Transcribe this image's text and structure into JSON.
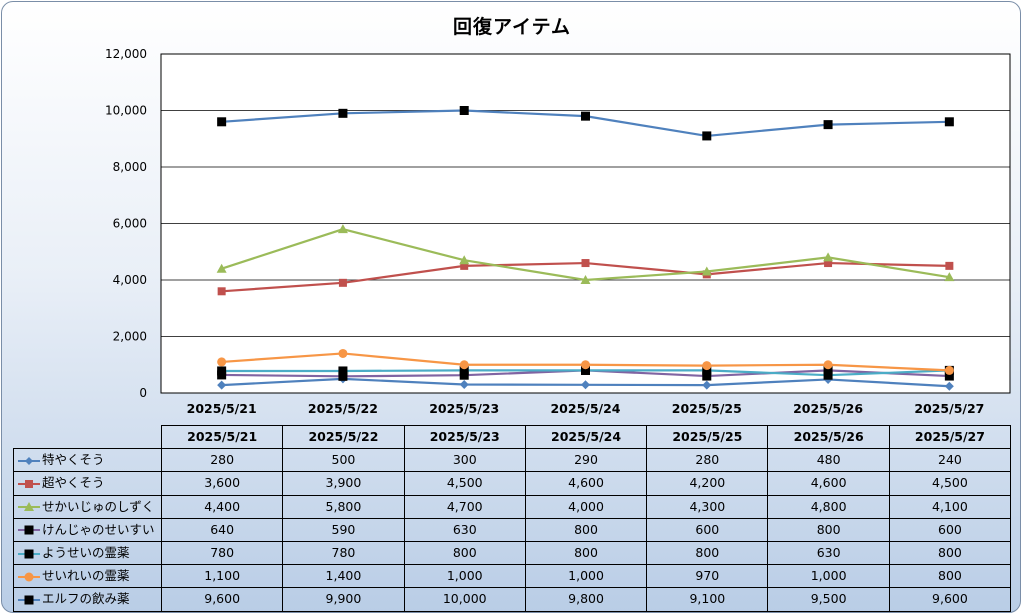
{
  "chart_data": {
    "type": "line",
    "title": "回復アイテム",
    "categories": [
      "2025/5/21",
      "2025/5/22",
      "2025/5/23",
      "2025/5/24",
      "2025/5/25",
      "2025/5/26",
      "2025/5/27"
    ],
    "ylim": [
      0,
      12000
    ],
    "yticks": [
      "0",
      "2,000",
      "4,000",
      "6,000",
      "8,000",
      "10,000",
      "12,000"
    ],
    "grid": true,
    "legend": "table-left",
    "series": [
      {
        "name": "特やくそう",
        "color": "#4f81bd",
        "marker": "diamond",
        "values": [
          280,
          500,
          300,
          290,
          280,
          480,
          240
        ],
        "labels": [
          "280",
          "500",
          "300",
          "290",
          "280",
          "480",
          "240"
        ]
      },
      {
        "name": "超やくそう",
        "color": "#c0504d",
        "marker": "square",
        "values": [
          3600,
          3900,
          4500,
          4600,
          4200,
          4600,
          4500
        ],
        "labels": [
          "3,600",
          "3,900",
          "4,500",
          "4,600",
          "4,200",
          "4,600",
          "4,500"
        ]
      },
      {
        "name": "せかいじゅのしずく",
        "color": "#9bbb59",
        "marker": "triangle",
        "values": [
          4400,
          5800,
          4700,
          4000,
          4300,
          4800,
          4100
        ],
        "labels": [
          "4,400",
          "5,800",
          "4,700",
          "4,000",
          "4,300",
          "4,800",
          "4,100"
        ]
      },
      {
        "name": "けんじゃのせいすい",
        "color": "#8064a2",
        "marker": "blacksquare",
        "values": [
          640,
          590,
          630,
          800,
          600,
          800,
          600
        ],
        "labels": [
          "640",
          "590",
          "630",
          "800",
          "600",
          "800",
          "600"
        ]
      },
      {
        "name": "ようせいの霊薬",
        "color": "#4bacc6",
        "marker": "blacksquare",
        "values": [
          780,
          780,
          800,
          800,
          800,
          630,
          800
        ],
        "labels": [
          "780",
          "780",
          "800",
          "800",
          "800",
          "630",
          "800"
        ]
      },
      {
        "name": "せいれいの霊薬",
        "color": "#f79646",
        "marker": "circle",
        "values": [
          1100,
          1400,
          1000,
          1000,
          970,
          1000,
          800
        ],
        "labels": [
          "1,100",
          "1,400",
          "1,000",
          "1,000",
          "970",
          "1,000",
          "800"
        ]
      },
      {
        "name": "エルフの飲み薬",
        "color": "#4f81bd",
        "marker": "blacksquare",
        "values": [
          9600,
          9900,
          10000,
          9800,
          9100,
          9500,
          9600
        ],
        "labels": [
          "9,600",
          "9,900",
          "10,000",
          "9,800",
          "9,100",
          "9,500",
          "9,600"
        ]
      }
    ]
  }
}
